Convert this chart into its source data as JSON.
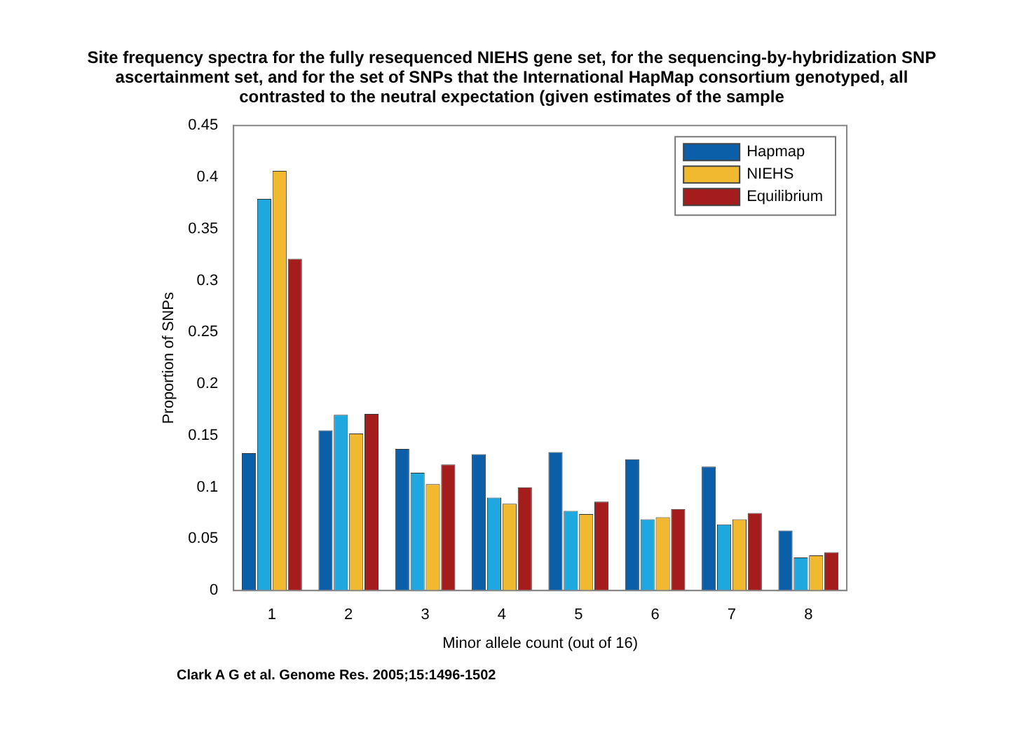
{
  "chart_data": {
    "type": "bar",
    "title": "Site frequency spectra for the fully resequenced NIEHS gene set, for the sequencing-by-hybridization SNP ascertainment set, and for the set of SNPs that the International HapMap consortium genotyped, all contrasted to the neutral expectation (given estimates of the sample",
    "xlabel": "Minor allele count (out of 16)",
    "ylabel": "Proportion of SNPs",
    "categories": [
      "1",
      "2",
      "3",
      "4",
      "5",
      "6",
      "7",
      "8"
    ],
    "series": [
      {
        "name": "Hapmap",
        "color": "#0b5fa8",
        "values": [
          0.133,
          0.155,
          0.137,
          0.132,
          0.134,
          0.127,
          0.12,
          0.058
        ]
      },
      {
        "color": "#1fa8e0",
        "values": [
          0.379,
          0.17,
          0.114,
          0.09,
          0.077,
          0.069,
          0.064,
          0.032
        ]
      },
      {
        "name": "NIEHS",
        "color": "#f0b930",
        "values": [
          0.406,
          0.152,
          0.103,
          0.084,
          0.074,
          0.071,
          0.069,
          0.034
        ]
      },
      {
        "name": "Equilibrium",
        "color": "#a51c1c",
        "values": [
          0.321,
          0.171,
          0.122,
          0.1,
          0.086,
          0.079,
          0.075,
          0.037
        ]
      }
    ],
    "ylim": [
      0,
      0.45
    ],
    "yticks": [
      0,
      0.05,
      0.1,
      0.15,
      0.2,
      0.25,
      0.3,
      0.35,
      0.4,
      0.45
    ],
    "grid": false,
    "legend": "top right",
    "annotations": [
      "Clark A G et al. Genome Res. 2005;15:1496-1502"
    ]
  }
}
